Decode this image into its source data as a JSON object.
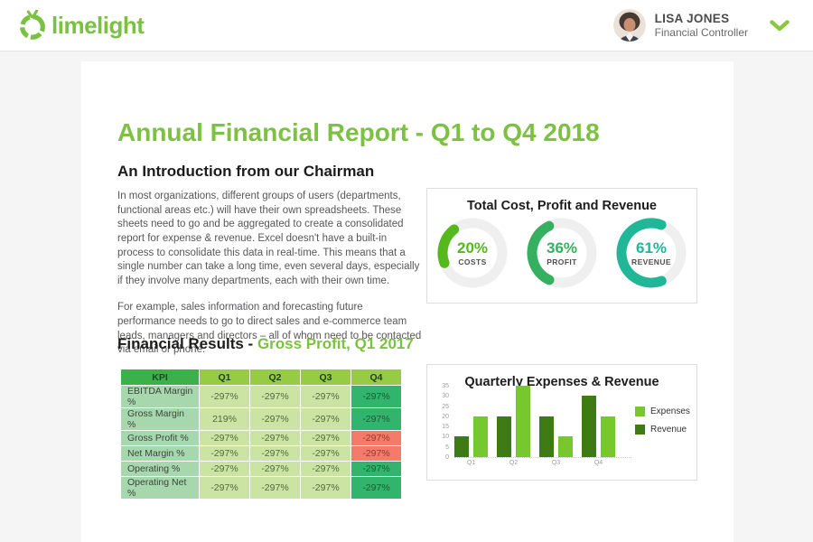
{
  "header": {
    "brand": "limelight",
    "user": {
      "name": "LISA JONES",
      "role": "Financial Controller"
    }
  },
  "report": {
    "title": "Annual Financial Report - Q1 to Q4 2018",
    "intro_heading": "An Introduction from our Chairman",
    "intro_p1": "In most organizations, different groups of users (departments, functional areas etc.) will have their own spreadsheets. These sheets need to go and be aggregated to create a consolidated report for expense & revenue. Excel doesn't have a built-in process to consolidate this data in real-time. This means that a single number can take a long time, even several days, especially if they involve many departments, each with their own time.",
    "intro_p2": "For example, sales information and forecasting future performance needs to go to direct sales and e-commerce team leads, managers and directors – all of whom need to be contacted via email or phone.",
    "results_heading_prefix": "Financial Results - ",
    "results_heading_highlight": "Gross Profit, Q1 2017"
  },
  "kpi_table": {
    "headers": [
      "KPI",
      "Q1",
      "Q2",
      "Q3",
      "Q4"
    ],
    "rows": [
      {
        "label": "EBITDA Margin %",
        "values": [
          "-297%",
          "-297%",
          "-297%",
          "-297%"
        ],
        "q4_style": "green"
      },
      {
        "label": "Gross Margin %",
        "values": [
          "219%",
          "-297%",
          "-297%",
          "-297%"
        ],
        "q4_style": "green"
      },
      {
        "label": "Gross Profit %",
        "values": [
          "-297%",
          "-297%",
          "-297%",
          "-297%"
        ],
        "q4_style": "red"
      },
      {
        "label": "Net Margin %",
        "values": [
          "-297%",
          "-297%",
          "-297%",
          "-297%"
        ],
        "q4_style": "red"
      },
      {
        "label": "Operating %",
        "values": [
          "-297%",
          "-297%",
          "-297%",
          "-297%"
        ],
        "q4_style": "green"
      },
      {
        "label": "Operating Net %",
        "values": [
          "-297%",
          "-297%",
          "-297%",
          "-297%"
        ],
        "q4_style": "green"
      }
    ]
  },
  "chart_data": [
    {
      "type": "pie",
      "variant": "donut-gauges",
      "title": "Total Cost, Profit and Revenue",
      "track_color": "#efefef",
      "gauges": [
        {
          "label": "COSTS",
          "value": 20,
          "unit": "%",
          "color": "#55b81c",
          "arc_start_deg": 250
        },
        {
          "label": "PROFIT",
          "value": 36,
          "unit": "%",
          "color": "#35b061",
          "arc_start_deg": 205
        },
        {
          "label": "REVENUE",
          "value": 61,
          "unit": "%",
          "color": "#1fb797",
          "arc_start_deg": 160
        }
      ]
    },
    {
      "type": "bar",
      "title": "Quarterly Expenses & Revenue",
      "categories": [
        "Q1",
        "Q2",
        "Q3",
        "Q4"
      ],
      "series": [
        {
          "name": "Revenue",
          "color": "#3e7c13",
          "values": [
            10,
            20,
            20,
            30
          ]
        },
        {
          "name": "Expenses",
          "color": "#76c82e",
          "values": [
            20,
            35,
            10,
            20
          ]
        }
      ],
      "legend_order": [
        "Expenses",
        "Revenue"
      ],
      "legend_position": "right",
      "ylim": [
        0,
        35
      ],
      "yticks": [
        0,
        5,
        10,
        15,
        20,
        25,
        30,
        35
      ],
      "grid": false
    }
  ],
  "colors": {
    "brand_green": "#7ac143",
    "title_green": "#7cc142",
    "chevron_green": "#8dc63f",
    "page_bg": "#f5f5f6",
    "q4_positive": "#31b56d",
    "q4_negative": "#f47a6c"
  }
}
